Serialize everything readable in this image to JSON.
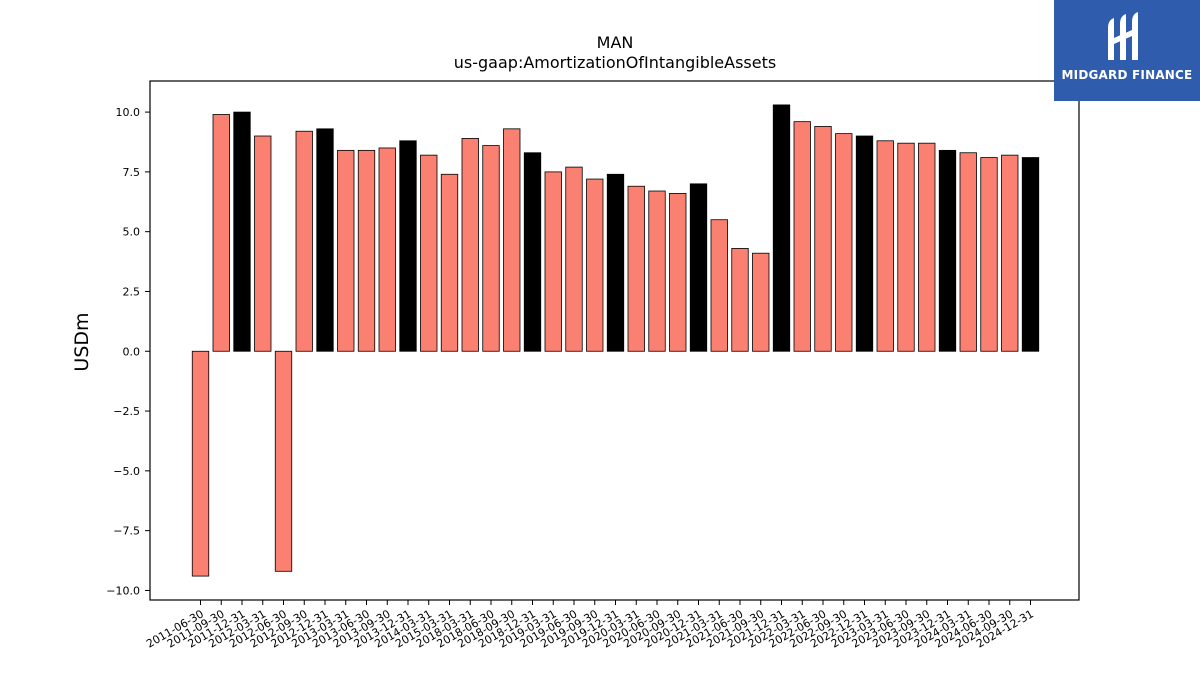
{
  "chart_data": {
    "type": "bar",
    "title": "MAN",
    "subtitle": "us-gaap:AmortizationOfIntangibleAssets",
    "xlabel": "",
    "ylabel": "USDm",
    "ylim": [
      -10.4,
      11.3
    ],
    "yticks": [
      -10.0,
      -7.5,
      -5.0,
      -2.5,
      0.0,
      2.5,
      5.0,
      7.5,
      10.0
    ],
    "ytick_labels": [
      "−10.0",
      "−7.5",
      "−5.0",
      "−2.5",
      "0.0",
      "2.5",
      "5.0",
      "7.5",
      "10.0"
    ],
    "grid": false,
    "legend": "none",
    "colors": {
      "quarter": "#fa8072",
      "fiscal_year_end": "#000000",
      "edge": "#000000"
    },
    "categories": [
      "2011-06-30",
      "2011-09-30",
      "2011-12-31",
      "2012-03-31",
      "2012-06-30",
      "2012-09-30",
      "2012-12-31",
      "2013-03-31",
      "2013-06-30",
      "2013-09-30",
      "2013-12-31",
      "2014-03-31",
      "2015-03-31",
      "2018-03-31",
      "2018-06-30",
      "2018-09-30",
      "2018-12-31",
      "2019-03-31",
      "2019-06-30",
      "2019-09-30",
      "2019-12-31",
      "2020-03-31",
      "2020-06-30",
      "2020-09-30",
      "2020-12-31",
      "2021-03-31",
      "2021-06-30",
      "2021-09-30",
      "2021-12-31",
      "2022-03-31",
      "2022-06-30",
      "2022-09-30",
      "2022-12-31",
      "2023-03-31",
      "2023-06-30",
      "2023-09-30",
      "2023-12-31",
      "2024-03-31",
      "2024-06-30",
      "2024-09-30",
      "2024-12-31"
    ],
    "values": [
      -9.4,
      9.9,
      10.0,
      9.0,
      -9.2,
      9.2,
      9.3,
      8.4,
      8.4,
      8.5,
      8.8,
      8.2,
      7.4,
      8.9,
      8.6,
      9.3,
      8.3,
      7.5,
      7.7,
      7.2,
      7.4,
      6.9,
      6.7,
      6.6,
      7.0,
      5.5,
      4.3,
      4.1,
      10.3,
      9.6,
      9.4,
      9.1,
      9.0,
      8.8,
      8.7,
      8.7,
      8.4,
      8.3,
      8.1,
      8.2,
      8.1
    ],
    "highlight": [
      false,
      false,
      true,
      false,
      false,
      false,
      true,
      false,
      false,
      false,
      true,
      false,
      false,
      false,
      false,
      false,
      true,
      false,
      false,
      false,
      true,
      false,
      false,
      false,
      true,
      false,
      false,
      false,
      true,
      false,
      false,
      false,
      true,
      false,
      false,
      false,
      true,
      false,
      false,
      false,
      true
    ]
  },
  "logo": {
    "text": "MIDGARD FINANCE",
    "icon": "midgard-logo-icon"
  }
}
